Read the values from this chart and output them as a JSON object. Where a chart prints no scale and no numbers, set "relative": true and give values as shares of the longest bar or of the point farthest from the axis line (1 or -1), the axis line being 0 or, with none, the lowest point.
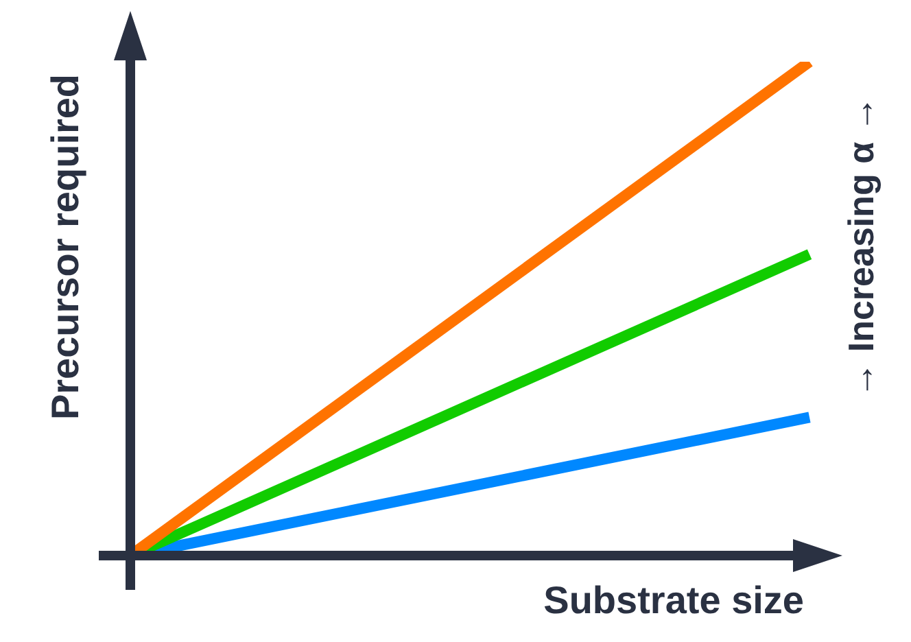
{
  "chart_data": {
    "type": "line",
    "xlabel": "Substrate size",
    "ylabel": "Precursor required",
    "relative": true,
    "categories": [
      null,
      null
    ],
    "series": [
      {
        "color": "#ff7300",
        "values": [
          0,
          1
        ]
      },
      {
        "color": "#11cc00",
        "values": [
          0,
          0.61
        ]
      },
      {
        "color": "#0088ff",
        "values": [
          0,
          0.28
        ]
      }
    ],
    "annotations": [
      "→ Increasing α →"
    ],
    "marker": "none",
    "line_style": "solid",
    "legend": false,
    "tick_labels": false
  }
}
